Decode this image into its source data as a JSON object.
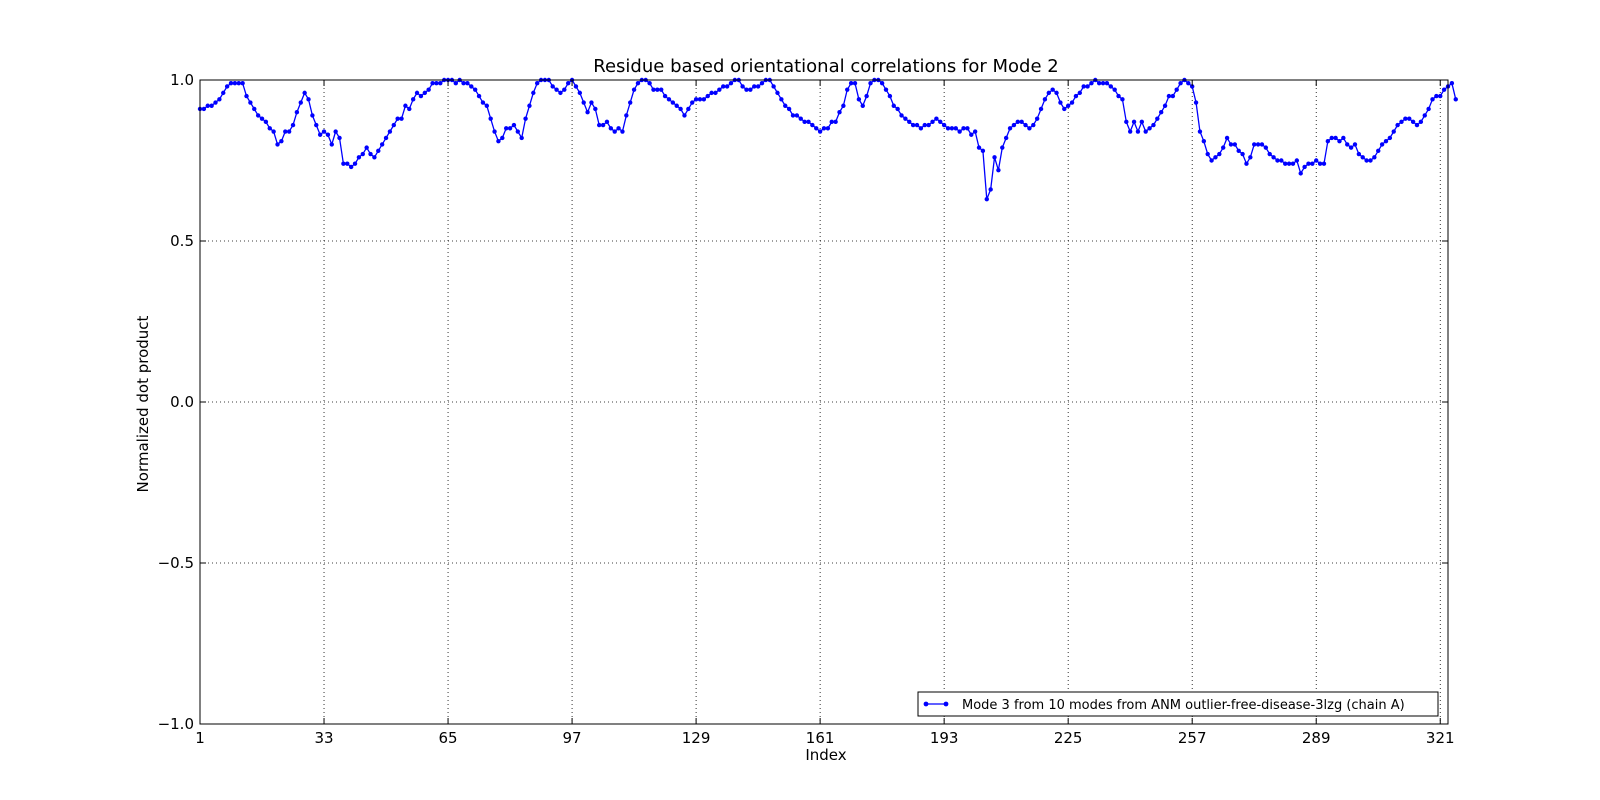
{
  "chart_data": {
    "type": "line",
    "title": "Residue based orientational correlations for Mode 2",
    "xlabel": "Index",
    "ylabel": "Normalized dot product",
    "xlim": [
      1,
      323
    ],
    "ylim": [
      -1.0,
      1.0
    ],
    "grid": true,
    "legend_position": "lower-right",
    "x_ticks": [
      1,
      33,
      65,
      97,
      129,
      161,
      193,
      225,
      257,
      289,
      321
    ],
    "x_tick_labels": [
      "1",
      "33",
      "65",
      "97",
      "129",
      "161",
      "193",
      "225",
      "257",
      "289",
      "321"
    ],
    "y_ticks": [
      -1.0,
      -0.5,
      0.0,
      0.5,
      1.0
    ],
    "y_tick_labels": [
      "−1.0",
      "−0.5",
      "0.0",
      "0.5",
      "1.0"
    ],
    "series": [
      {
        "name": "Mode 3 from 10 modes from ANM outlier-free-disease-3lzg (chain A)",
        "color": "#0000ff",
        "x_start": 1,
        "values": [
          0.91,
          0.91,
          0.92,
          0.92,
          0.93,
          0.94,
          0.96,
          0.98,
          0.99,
          0.99,
          0.99,
          0.99,
          0.95,
          0.93,
          0.91,
          0.89,
          0.88,
          0.87,
          0.85,
          0.84,
          0.8,
          0.81,
          0.84,
          0.84,
          0.86,
          0.9,
          0.93,
          0.96,
          0.94,
          0.89,
          0.86,
          0.83,
          0.84,
          0.83,
          0.8,
          0.84,
          0.82,
          0.74,
          0.74,
          0.73,
          0.74,
          0.76,
          0.77,
          0.79,
          0.77,
          0.76,
          0.78,
          0.8,
          0.82,
          0.84,
          0.86,
          0.88,
          0.88,
          0.92,
          0.91,
          0.94,
          0.96,
          0.95,
          0.96,
          0.97,
          0.99,
          0.99,
          0.99,
          1.0,
          1.0,
          1.0,
          0.99,
          1.0,
          0.99,
          0.99,
          0.98,
          0.97,
          0.95,
          0.93,
          0.92,
          0.88,
          0.84,
          0.81,
          0.82,
          0.85,
          0.85,
          0.86,
          0.84,
          0.82,
          0.88,
          0.92,
          0.96,
          0.99,
          1.0,
          1.0,
          1.0,
          0.98,
          0.97,
          0.96,
          0.97,
          0.99,
          1.0,
          0.98,
          0.96,
          0.93,
          0.9,
          0.93,
          0.91,
          0.86,
          0.86,
          0.87,
          0.85,
          0.84,
          0.85,
          0.84,
          0.89,
          0.93,
          0.97,
          0.99,
          1.0,
          1.0,
          0.99,
          0.97,
          0.97,
          0.97,
          0.95,
          0.94,
          0.93,
          0.92,
          0.91,
          0.89,
          0.91,
          0.93,
          0.94,
          0.94,
          0.94,
          0.95,
          0.96,
          0.96,
          0.97,
          0.98,
          0.98,
          0.99,
          1.0,
          1.0,
          0.98,
          0.97,
          0.97,
          0.98,
          0.98,
          0.99,
          1.0,
          1.0,
          0.98,
          0.96,
          0.94,
          0.92,
          0.91,
          0.89,
          0.89,
          0.88,
          0.87,
          0.87,
          0.86,
          0.85,
          0.84,
          0.85,
          0.85,
          0.87,
          0.87,
          0.9,
          0.92,
          0.97,
          0.99,
          0.99,
          0.94,
          0.92,
          0.95,
          0.99,
          1.0,
          1.0,
          0.99,
          0.97,
          0.95,
          0.92,
          0.91,
          0.89,
          0.88,
          0.87,
          0.86,
          0.86,
          0.85,
          0.86,
          0.86,
          0.87,
          0.88,
          0.87,
          0.86,
          0.85,
          0.85,
          0.85,
          0.84,
          0.85,
          0.85,
          0.83,
          0.84,
          0.79,
          0.78,
          0.63,
          0.66,
          0.76,
          0.72,
          0.79,
          0.82,
          0.85,
          0.86,
          0.87,
          0.87,
          0.86,
          0.85,
          0.86,
          0.88,
          0.91,
          0.94,
          0.96,
          0.97,
          0.96,
          0.93,
          0.91,
          0.92,
          0.93,
          0.95,
          0.96,
          0.98,
          0.98,
          0.99,
          1.0,
          0.99,
          0.99,
          0.99,
          0.98,
          0.97,
          0.95,
          0.94,
          0.87,
          0.84,
          0.87,
          0.84,
          0.87,
          0.84,
          0.85,
          0.86,
          0.88,
          0.9,
          0.92,
          0.95,
          0.95,
          0.97,
          0.99,
          1.0,
          0.99,
          0.98,
          0.93,
          0.84,
          0.81,
          0.77,
          0.75,
          0.76,
          0.77,
          0.79,
          0.82,
          0.8,
          0.8,
          0.78,
          0.77,
          0.74,
          0.76,
          0.8,
          0.8,
          0.8,
          0.79,
          0.77,
          0.76,
          0.75,
          0.75,
          0.74,
          0.74,
          0.74,
          0.75,
          0.71,
          0.73,
          0.74,
          0.74,
          0.75,
          0.74,
          0.74,
          0.81,
          0.82,
          0.82,
          0.81,
          0.82,
          0.8,
          0.79,
          0.8,
          0.77,
          0.76,
          0.75,
          0.75,
          0.76,
          0.78,
          0.8,
          0.81,
          0.82,
          0.84,
          0.86,
          0.87,
          0.88,
          0.88,
          0.87,
          0.86,
          0.87,
          0.89,
          0.91,
          0.94,
          0.95,
          0.95,
          0.97,
          0.98,
          0.99,
          0.94
        ]
      }
    ]
  }
}
